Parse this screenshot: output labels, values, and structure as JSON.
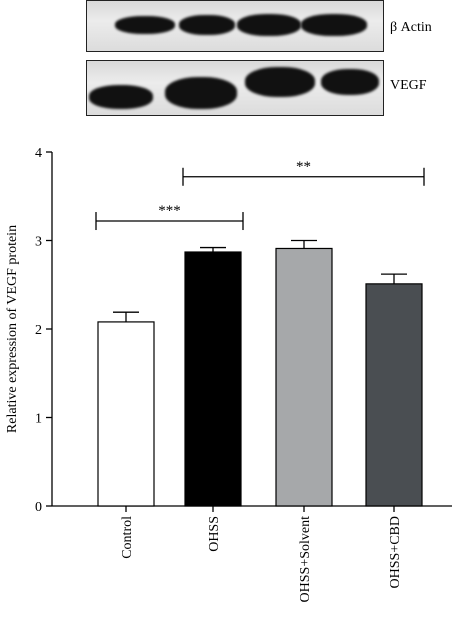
{
  "blots": [
    {
      "label": "β Actin",
      "lanes": 4
    },
    {
      "label": "VEGF",
      "lanes": 4
    }
  ],
  "chart_data": {
    "type": "bar",
    "categories": [
      "Control",
      "OHSS",
      "OHSS+Solvent",
      "OHSS+CBD"
    ],
    "values": [
      2.08,
      2.87,
      2.91,
      2.51
    ],
    "errors": [
      0.11,
      0.05,
      0.09,
      0.11
    ],
    "colors": [
      "#ffffff",
      "#000000",
      "#a6a8aa",
      "#4a4e52"
    ],
    "ylabel": "Relative expression of VEGF protein",
    "ylim": [
      0,
      4
    ],
    "yticks": [
      0,
      1,
      2,
      3,
      4
    ],
    "significance": [
      {
        "from": 0,
        "to": 1,
        "level": 3.22,
        "label": "***"
      },
      {
        "from": 1,
        "to": 3,
        "level": 3.72,
        "label": "**"
      }
    ]
  }
}
